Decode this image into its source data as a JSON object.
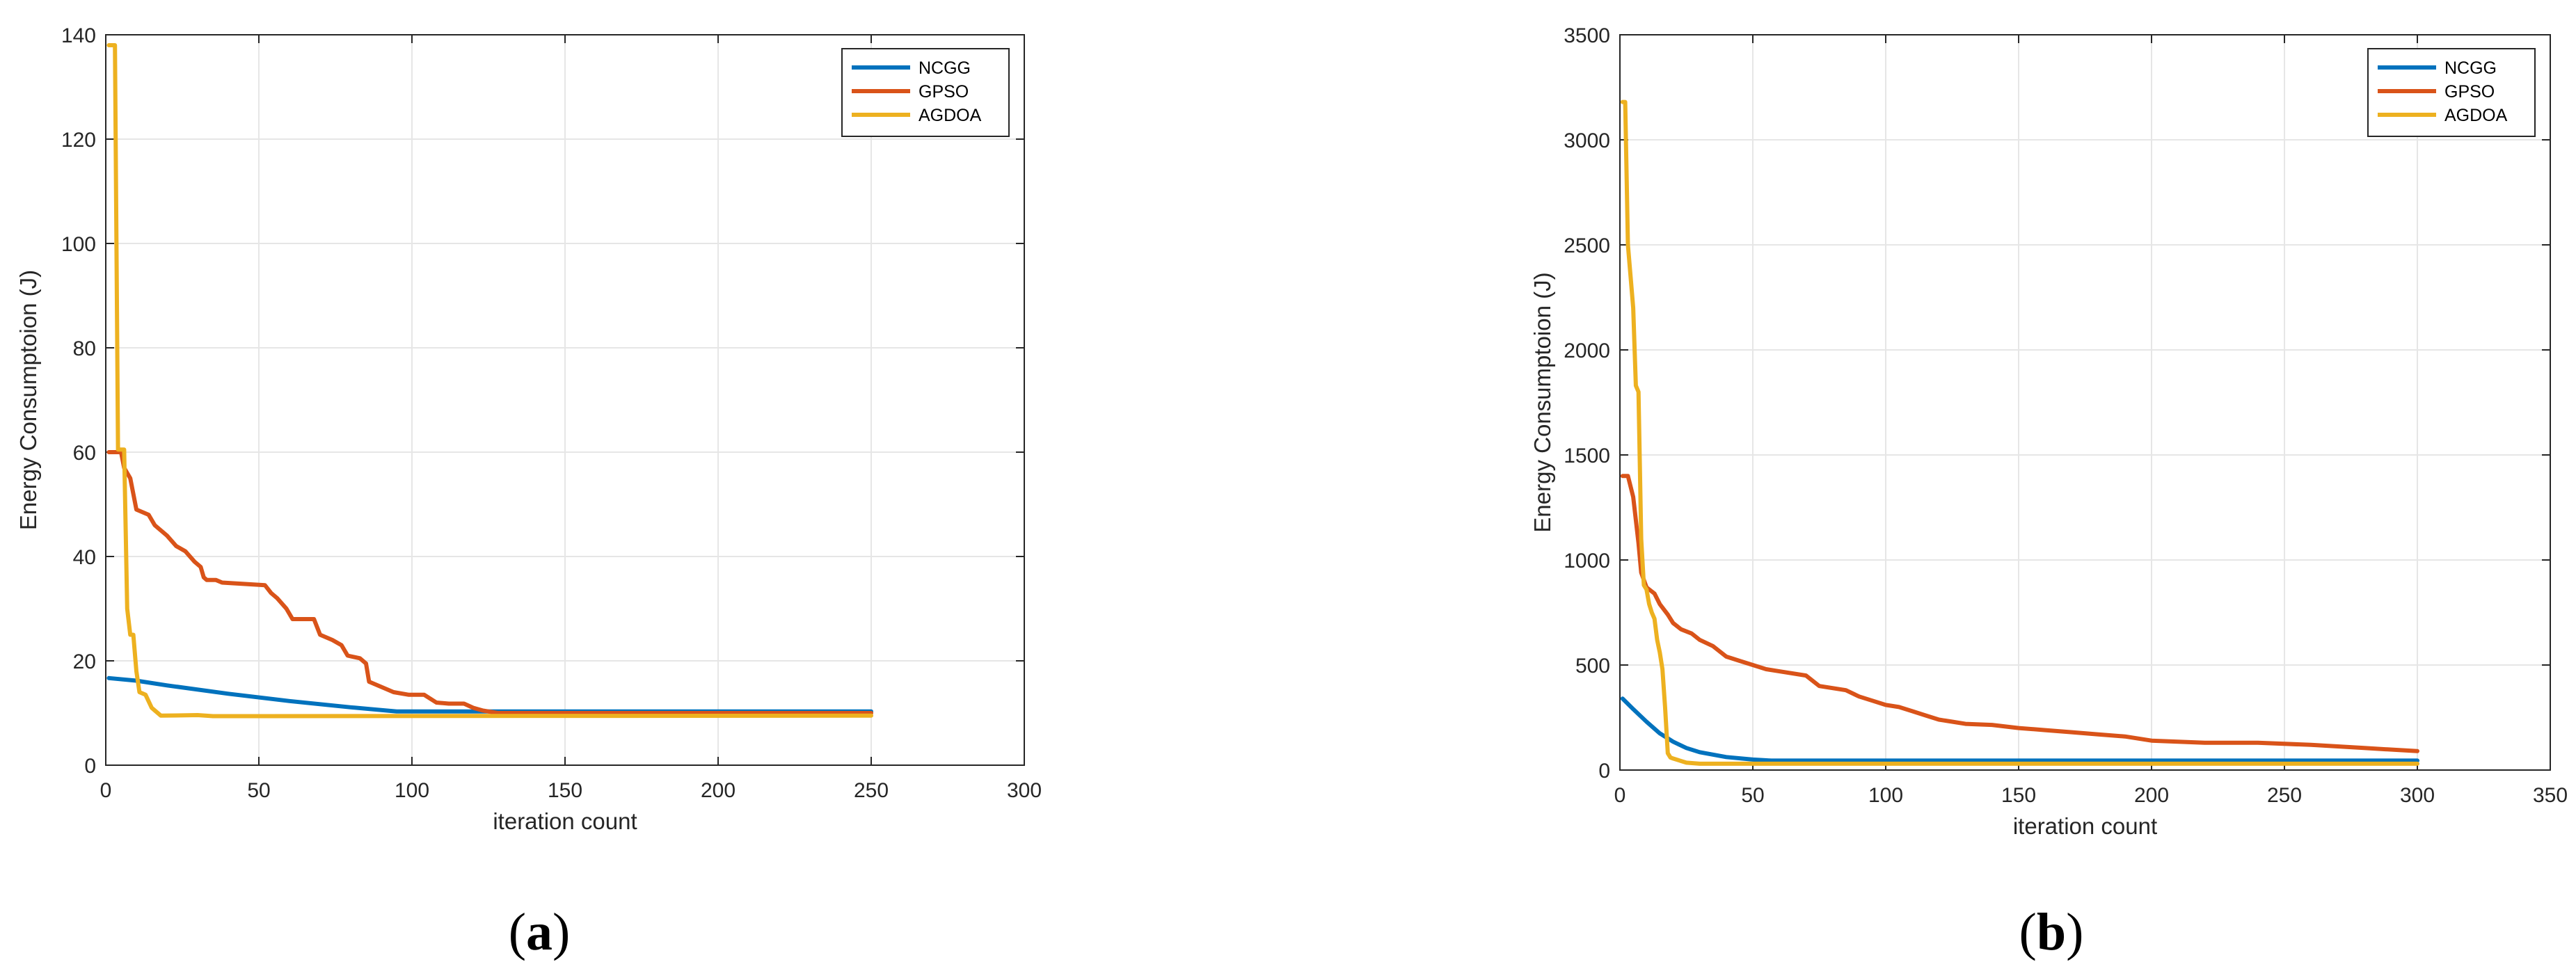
{
  "chart_data": [
    {
      "type": "line",
      "panel_label": {
        "open": "(",
        "letter": "a",
        "close": ")"
      },
      "title": "",
      "xlabel": "iteration count",
      "ylabel": "Energy Consumptoion (J)",
      "xlim": [
        0,
        300
      ],
      "ylim": [
        0,
        140
      ],
      "xticks": [
        0,
        50,
        100,
        150,
        200,
        250,
        300
      ],
      "yticks": [
        0,
        20,
        40,
        60,
        80,
        100,
        120,
        140
      ],
      "grid": true,
      "legend_position": "top-right",
      "series": [
        {
          "name": "NCGG",
          "color": "#0072BD",
          "points": [
            [
              1,
              16.7
            ],
            [
              10,
              16.2
            ],
            [
              20,
              15.3
            ],
            [
              40,
              13.7
            ],
            [
              60,
              12.3
            ],
            [
              80,
              11.1
            ],
            [
              95,
              10.3
            ],
            [
              100,
              10.3
            ],
            [
              150,
              10.3
            ],
            [
              200,
              10.3
            ],
            [
              250,
              10.3
            ]
          ]
        },
        {
          "name": "GPSO",
          "color": "#D95319",
          "points": [
            [
              1,
              60
            ],
            [
              5,
              60
            ],
            [
              6,
              57
            ],
            [
              8,
              55
            ],
            [
              9,
              52
            ],
            [
              10,
              49
            ],
            [
              14,
              48
            ],
            [
              16,
              46
            ],
            [
              18,
              45
            ],
            [
              20,
              44
            ],
            [
              23,
              42
            ],
            [
              26,
              41
            ],
            [
              29,
              39
            ],
            [
              31,
              38
            ],
            [
              32,
              36
            ],
            [
              33,
              35.5
            ],
            [
              36,
              35.5
            ],
            [
              38,
              35
            ],
            [
              52,
              34.5
            ],
            [
              54,
              33
            ],
            [
              56,
              32
            ],
            [
              59,
              30
            ],
            [
              61,
              28
            ],
            [
              68,
              28
            ],
            [
              70,
              25
            ],
            [
              74,
              24
            ],
            [
              77,
              23
            ],
            [
              79,
              21
            ],
            [
              83,
              20.5
            ],
            [
              85,
              19.5
            ],
            [
              86,
              16
            ],
            [
              90,
              15
            ],
            [
              94,
              14
            ],
            [
              99,
              13.5
            ],
            [
              104,
              13.5
            ],
            [
              108,
              12
            ],
            [
              112,
              11.8
            ],
            [
              117,
              11.8
            ],
            [
              120,
              11
            ],
            [
              123,
              10.5
            ],
            [
              128,
              10
            ],
            [
              140,
              10
            ],
            [
              250,
              10
            ]
          ]
        },
        {
          "name": "AGDOA",
          "color": "#EDB120",
          "points": [
            [
              1,
              138
            ],
            [
              3,
              138
            ],
            [
              4,
              60.5
            ],
            [
              6,
              60.5
            ],
            [
              7,
              30
            ],
            [
              8,
              25
            ],
            [
              9,
              25
            ],
            [
              10,
              18
            ],
            [
              11,
              14
            ],
            [
              13,
              13.5
            ],
            [
              15,
              11
            ],
            [
              16,
              10.5
            ],
            [
              18,
              9.5
            ],
            [
              30,
              9.6
            ],
            [
              35,
              9.4
            ],
            [
              250,
              9.5
            ]
          ]
        }
      ]
    },
    {
      "type": "line",
      "panel_label": {
        "open": "(",
        "letter": "b",
        "close": ")"
      },
      "title": "",
      "xlabel": "iteration count",
      "ylabel": "Energy Consumptoion (J)",
      "xlim": [
        0,
        350
      ],
      "ylim": [
        0,
        3500
      ],
      "xticks": [
        0,
        50,
        100,
        150,
        200,
        250,
        300,
        350
      ],
      "yticks": [
        0,
        500,
        1000,
        1500,
        2000,
        2500,
        3000,
        3500
      ],
      "grid": true,
      "legend_position": "top-right",
      "series": [
        {
          "name": "NCGG",
          "color": "#0072BD",
          "points": [
            [
              1,
              340
            ],
            [
              5,
              290
            ],
            [
              10,
              230
            ],
            [
              15,
              175
            ],
            [
              20,
              135
            ],
            [
              25,
              105
            ],
            [
              30,
              85
            ],
            [
              40,
              62
            ],
            [
              50,
              50
            ],
            [
              57,
              45
            ],
            [
              60,
              45
            ],
            [
              100,
              45
            ],
            [
              150,
              45
            ],
            [
              200,
              45
            ],
            [
              250,
              45
            ],
            [
              300,
              45
            ]
          ]
        },
        {
          "name": "GPSO",
          "color": "#D95319",
          "points": [
            [
              1,
              1400
            ],
            [
              3,
              1400
            ],
            [
              5,
              1300
            ],
            [
              7,
              1080
            ],
            [
              8,
              940
            ],
            [
              10,
              870
            ],
            [
              13,
              840
            ],
            [
              15,
              790
            ],
            [
              18,
              740
            ],
            [
              20,
              700
            ],
            [
              23,
              670
            ],
            [
              27,
              650
            ],
            [
              30,
              620
            ],
            [
              35,
              590
            ],
            [
              40,
              540
            ],
            [
              45,
              520
            ],
            [
              50,
              500
            ],
            [
              55,
              480
            ],
            [
              60,
              470
            ],
            [
              70,
              450
            ],
            [
              75,
              400
            ],
            [
              80,
              390
            ],
            [
              85,
              380
            ],
            [
              90,
              350
            ],
            [
              95,
              330
            ],
            [
              100,
              310
            ],
            [
              105,
              300
            ],
            [
              110,
              280
            ],
            [
              115,
              260
            ],
            [
              120,
              240
            ],
            [
              125,
              230
            ],
            [
              130,
              220
            ],
            [
              140,
              215
            ],
            [
              150,
              200
            ],
            [
              160,
              190
            ],
            [
              170,
              180
            ],
            [
              180,
              170
            ],
            [
              190,
              160
            ],
            [
              200,
              140
            ],
            [
              220,
              130
            ],
            [
              240,
              130
            ],
            [
              260,
              120
            ],
            [
              280,
              105
            ],
            [
              300,
              90
            ]
          ]
        },
        {
          "name": "AGDOA",
          "color": "#EDB120",
          "points": [
            [
              1,
              3180
            ],
            [
              2,
              3180
            ],
            [
              3,
              2500
            ],
            [
              4,
              2350
            ],
            [
              5,
              2200
            ],
            [
              6,
              1830
            ],
            [
              7,
              1800
            ],
            [
              8,
              1100
            ],
            [
              9,
              880
            ],
            [
              10,
              860
            ],
            [
              11,
              790
            ],
            [
              12,
              750
            ],
            [
              13,
              720
            ],
            [
              14,
              620
            ],
            [
              15,
              560
            ],
            [
              16,
              480
            ],
            [
              17,
              300
            ],
            [
              18,
              80
            ],
            [
              19,
              60
            ],
            [
              20,
              55
            ],
            [
              25,
              35
            ],
            [
              30,
              30
            ],
            [
              40,
              30
            ],
            [
              50,
              30
            ],
            [
              100,
              30
            ],
            [
              150,
              30
            ],
            [
              200,
              30
            ],
            [
              250,
              30
            ],
            [
              300,
              30
            ]
          ]
        }
      ]
    }
  ]
}
